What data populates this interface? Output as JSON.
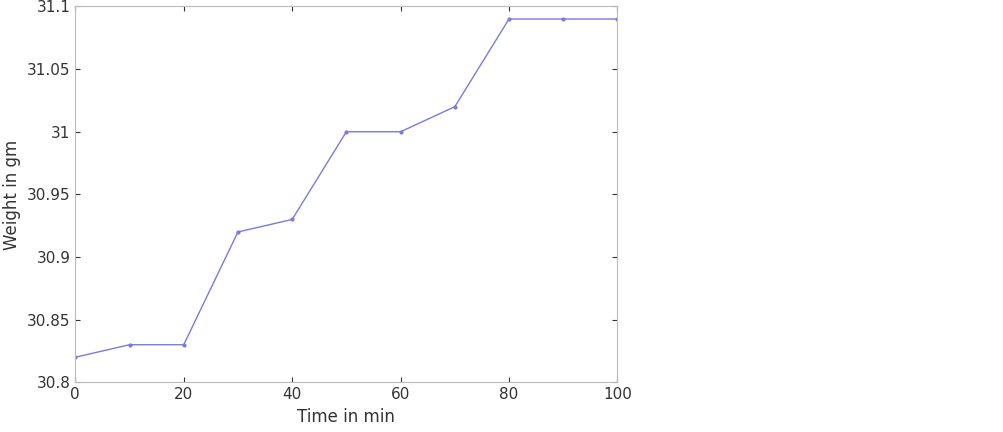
{
  "chart_data": {
    "type": "line",
    "x": [
      0,
      10,
      20,
      30,
      40,
      50,
      60,
      70,
      80,
      90,
      100
    ],
    "values": [
      30.82,
      30.83,
      30.83,
      30.92,
      30.93,
      31.0,
      31.0,
      31.02,
      31.09,
      31.09,
      31.09
    ],
    "color": "#7a7adf",
    "marker": "dot",
    "line_style": "solid",
    "x_label": "Time in min",
    "y_label": "Weight in gm",
    "xlim": [
      0,
      100
    ],
    "xticks": [
      0,
      20,
      40,
      60,
      80,
      100
    ],
    "ylim": [
      30.8,
      31.1
    ],
    "yticks": [
      30.8,
      30.85,
      30.9,
      30.95,
      31,
      31.05,
      31.1
    ],
    "grid": false
  }
}
